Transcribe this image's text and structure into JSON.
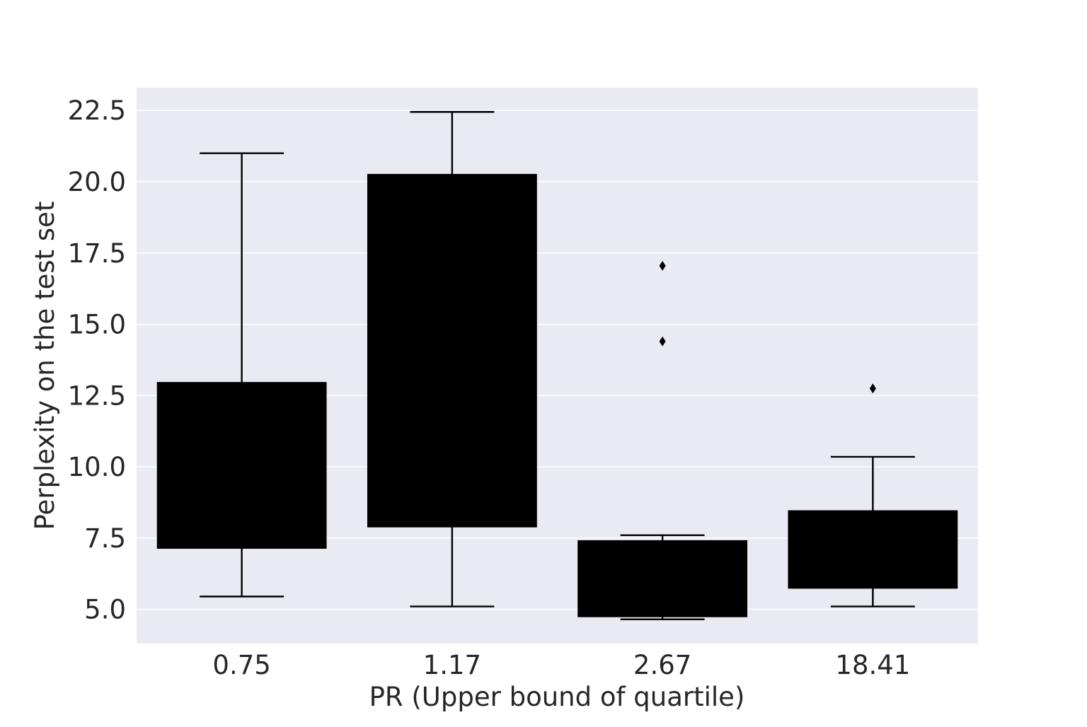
{
  "chart_data": {
    "type": "box",
    "title": "",
    "xlabel": "PR (Upper bound of quartile)",
    "ylabel": "Perplexity on the test set",
    "categories": [
      "0.75",
      "1.17",
      "2.67",
      "18.41"
    ],
    "yticks": [
      "5.0",
      "7.5",
      "10.0",
      "12.5",
      "15.0",
      "17.5",
      "20.0",
      "22.5"
    ],
    "ylim": [
      3.8,
      23.3
    ],
    "grid": true,
    "box_color": "#000000",
    "background_color": "#eaeaf2",
    "grid_color": "#ffffff",
    "boxes": [
      {
        "category": "0.75",
        "whisker_low": 5.45,
        "q1": 7.15,
        "q3": 12.95,
        "whisker_high": 21.0,
        "outliers": []
      },
      {
        "category": "1.17",
        "whisker_low": 5.1,
        "q1": 7.9,
        "q3": 20.25,
        "whisker_high": 22.45,
        "outliers": []
      },
      {
        "category": "2.67",
        "whisker_low": 4.65,
        "q1": 4.75,
        "q3": 7.4,
        "whisker_high": 7.6,
        "outliers": [
          14.4,
          17.05
        ]
      },
      {
        "category": "18.41",
        "whisker_low": 5.1,
        "q1": 5.75,
        "q3": 8.45,
        "whisker_high": 10.35,
        "outliers": [
          12.75
        ]
      }
    ]
  }
}
